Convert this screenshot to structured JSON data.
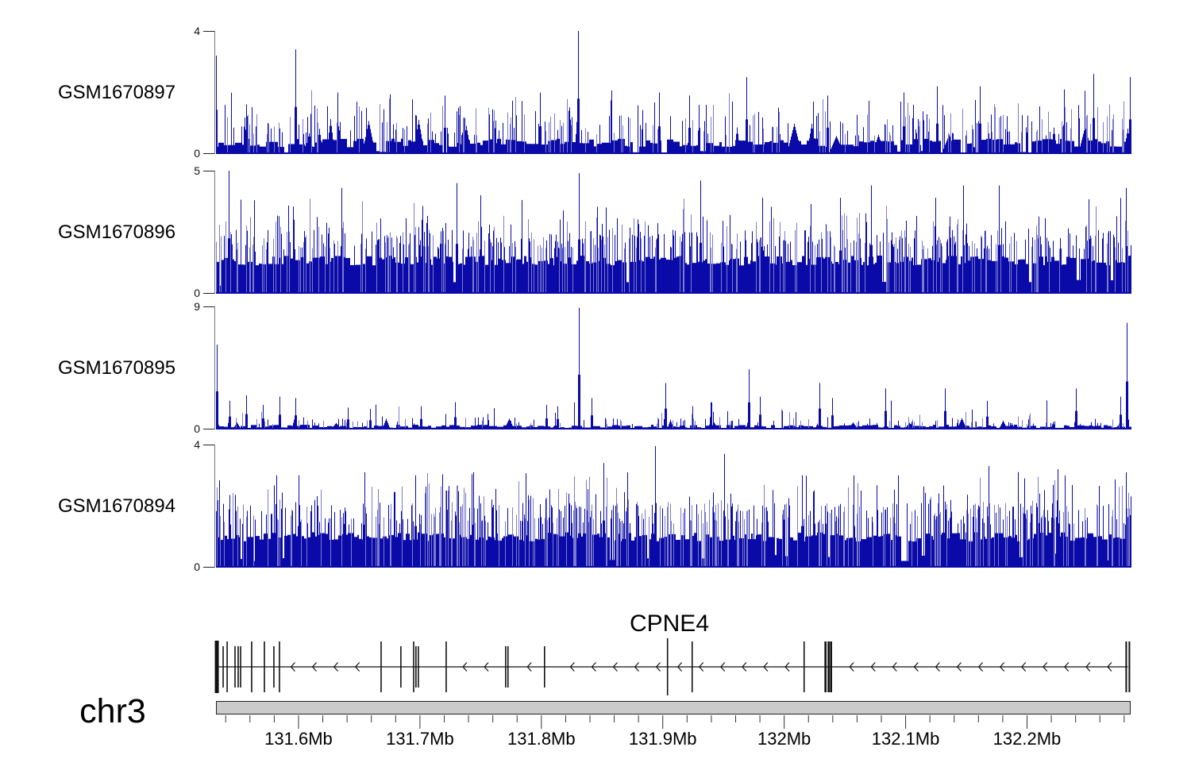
{
  "region": {
    "chromosome": "chr3",
    "start_mb": 131.532,
    "end_mb": 132.286
  },
  "gene_panel": {
    "gene_label": "CPNE4",
    "strand": "minus",
    "exons": [
      {
        "mb": 131.5327,
        "kind": "thick"
      },
      {
        "mb": 131.5379,
        "kind": "short"
      },
      {
        "mb": 131.5412,
        "kind": "tall"
      },
      {
        "mb": 131.5477,
        "kind": "short"
      },
      {
        "mb": 131.5503,
        "kind": "short"
      },
      {
        "mb": 131.5523,
        "kind": "short"
      },
      {
        "mb": 131.5614,
        "kind": "tall"
      },
      {
        "mb": 131.5719,
        "kind": "tall"
      },
      {
        "mb": 131.5797,
        "kind": "short"
      },
      {
        "mb": 131.5843,
        "kind": "tall"
      },
      {
        "mb": 131.668,
        "kind": "tall"
      },
      {
        "mb": 131.6843,
        "kind": "short"
      },
      {
        "mb": 131.6948,
        "kind": "tall"
      },
      {
        "mb": 131.6967,
        "kind": "short"
      },
      {
        "mb": 131.6987,
        "kind": "short"
      },
      {
        "mb": 131.7216,
        "kind": "tall"
      },
      {
        "mb": 131.7706,
        "kind": "short"
      },
      {
        "mb": 131.7725,
        "kind": "short"
      },
      {
        "mb": 131.8026,
        "kind": "short"
      },
      {
        "mb": 131.9039,
        "kind": "xtall"
      },
      {
        "mb": 131.9242,
        "kind": "tall"
      },
      {
        "mb": 132.0164,
        "kind": "tall"
      },
      {
        "mb": 132.034,
        "kind": "thick2"
      },
      {
        "mb": 132.0366,
        "kind": "thick2"
      },
      {
        "mb": 132.0386,
        "kind": "thick2"
      },
      {
        "mb": 132.283,
        "kind": "end"
      }
    ]
  },
  "chromosome_axis": {
    "minor_step_mb": 0.02,
    "major_ticks": [
      {
        "mb": 131.6,
        "label": "131.6Mb"
      },
      {
        "mb": 131.7,
        "label": "131.7Mb"
      },
      {
        "mb": 131.8,
        "label": "131.8Mb"
      },
      {
        "mb": 131.9,
        "label": "131.9Mb"
      },
      {
        "mb": 132.0,
        "label": "132Mb"
      },
      {
        "mb": 132.1,
        "label": "132.1Mb"
      },
      {
        "mb": 132.2,
        "label": "132.2Mb"
      }
    ]
  },
  "chart_data": {
    "type": "genome-coverage-tracks",
    "x_unit": "Mb on chr3",
    "signal_color": "#0a0aa8",
    "signal_color_light": "#7b7bcc",
    "tracks": [
      {
        "label": "GSM1670897",
        "ymax": 4,
        "ytick_top": "4",
        "ytick_bottom": "0",
        "seed": 7,
        "gen": {
          "base": [
            0.22,
            0.5
          ],
          "run": [
            3,
            9
          ],
          "gap_p": 0.07,
          "gap_lvl": [
            0.02,
            0.1
          ],
          "spikes": [
            {
              "p": 0.2,
              "lo": 0.6,
              "hi": 1.3
            },
            {
              "p": 0.05,
              "lo": 1.2,
              "hi": 1.8
            },
            {
              "p": 0.008,
              "lo": 1.6,
              "hi": 2.2
            }
          ],
          "bumps": {
            "p": 0.012,
            "w": [
              4,
              10
            ],
            "h": [
              0.5,
              1.1
            ]
          }
        },
        "peaks": [
          [
            131.532,
            3.2
          ],
          [
            131.5974,
            3.4
          ],
          [
            131.632,
            2.0
          ],
          [
            131.7203,
            1.9
          ],
          [
            131.7987,
            2.0
          ],
          [
            131.8301,
            4.0
          ],
          [
            131.8967,
            2.0
          ],
          [
            131.9216,
            1.9
          ],
          [
            131.9686,
            2.5
          ],
          [
            132.0353,
            1.9
          ],
          [
            132.098,
            2.0
          ],
          [
            132.1255,
            2.2
          ],
          [
            132.1614,
            2.2
          ],
          [
            132.2301,
            2.1
          ],
          [
            132.2549,
            2.6
          ],
          [
            132.285,
            2.5
          ]
        ]
      },
      {
        "label": "GSM1670896",
        "ymax": 5,
        "ytick_top": "5",
        "ytick_bottom": "0",
        "seed": 13,
        "gen": {
          "base": [
            1.15,
            1.55
          ],
          "run": [
            2,
            7
          ],
          "gap_p": 0.04,
          "gap_lvl": [
            0.3,
            0.6
          ],
          "spikes": [
            {
              "p": 0.3,
              "lo": 1.8,
              "hi": 2.6
            },
            {
              "p": 0.1,
              "lo": 2.4,
              "hi": 3.2
            },
            {
              "p": 0.02,
              "lo": 3.2,
              "hi": 3.9
            }
          ],
          "bumps": null
        },
        "peaks": [
          [
            131.5425,
            5.0
          ],
          [
            131.5634,
            3.8
          ],
          [
            131.6353,
            4.3
          ],
          [
            131.7301,
            4.5
          ],
          [
            131.7497,
            4.0
          ],
          [
            131.8307,
            4.9
          ],
          [
            131.9307,
            4.6
          ],
          [
            131.9817,
            3.9
          ],
          [
            132.0458,
            3.9
          ],
          [
            132.0712,
            4.4
          ],
          [
            132.1242,
            3.9
          ],
          [
            132.1471,
            4.4
          ],
          [
            132.1771,
            4.4
          ],
          [
            132.2817,
            4.3
          ]
        ]
      },
      {
        "label": "GSM1670895",
        "ymax": 9,
        "ytick_top": "9",
        "ytick_bottom": "0",
        "seed": 21,
        "gen": {
          "base": [
            0.12,
            0.35
          ],
          "run": [
            3,
            8
          ],
          "gap_p": 0.1,
          "gap_lvl": [
            0.01,
            0.06
          ],
          "spikes": [
            {
              "p": 0.1,
              "lo": 0.4,
              "hi": 0.9
            },
            {
              "p": 0.02,
              "lo": 0.9,
              "hi": 1.6
            },
            {
              "p": 0.004,
              "lo": 1.6,
              "hi": 2.2
            }
          ],
          "bumps": {
            "p": 0.02,
            "w": [
              3,
              7
            ],
            "h": [
              0.3,
              0.8
            ]
          }
        },
        "peaks": [
          [
            131.5327,
            6.2
          ],
          [
            131.5431,
            2.1
          ],
          [
            131.5569,
            2.5
          ],
          [
            131.5706,
            1.8
          ],
          [
            131.5843,
            2.4
          ],
          [
            131.5974,
            2.3
          ],
          [
            131.6405,
            1.6
          ],
          [
            131.6588,
            1.5
          ],
          [
            131.7007,
            1.7
          ],
          [
            131.7288,
            2.0
          ],
          [
            131.8039,
            1.8
          ],
          [
            131.8131,
            1.7
          ],
          [
            131.8307,
            8.9
          ],
          [
            131.8412,
            2.3
          ],
          [
            131.902,
            3.4
          ],
          [
            131.9242,
            1.7
          ],
          [
            131.9392,
            2.0
          ],
          [
            131.9706,
            4.4
          ],
          [
            131.9797,
            2.4
          ],
          [
            132.0288,
            3.4
          ],
          [
            132.0392,
            2.3
          ],
          [
            132.083,
            3.0
          ],
          [
            132.132,
            3.0
          ],
          [
            132.1667,
            2.1
          ],
          [
            132.2399,
            3.0
          ],
          [
            132.2771,
            2.4
          ],
          [
            132.2824,
            7.8
          ]
        ]
      },
      {
        "label": "GSM1670894",
        "ymax": 4,
        "ytick_top": "4",
        "ytick_bottom": "0",
        "seed": 42,
        "gen": {
          "base": [
            0.85,
            1.15
          ],
          "run": [
            2,
            7
          ],
          "gap_p": 0.05,
          "gap_lvl": [
            0.2,
            0.5
          ],
          "spikes": [
            {
              "p": 0.32,
              "lo": 1.4,
              "hi": 2.1
            },
            {
              "p": 0.1,
              "lo": 2.0,
              "hi": 2.7
            },
            {
              "p": 0.015,
              "lo": 2.6,
              "hi": 3.2
            }
          ],
          "bumps": null
        },
        "peaks": [
          [
            131.5817,
            3.0
          ],
          [
            131.6,
            3.0
          ],
          [
            131.6542,
            3.1
          ],
          [
            131.6961,
            3.0
          ],
          [
            131.7438,
            3.1
          ],
          [
            131.851,
            3.4
          ],
          [
            131.8706,
            3.1
          ],
          [
            131.8935,
            3.95
          ],
          [
            131.9503,
            3.7
          ],
          [
            132.0144,
            3.0
          ],
          [
            132.0569,
            3.0
          ],
          [
            132.1686,
            3.3
          ],
          [
            132.1974,
            2.9
          ],
          [
            132.2249,
            3.2
          ],
          [
            132.2817,
            3.1
          ]
        ]
      }
    ]
  }
}
